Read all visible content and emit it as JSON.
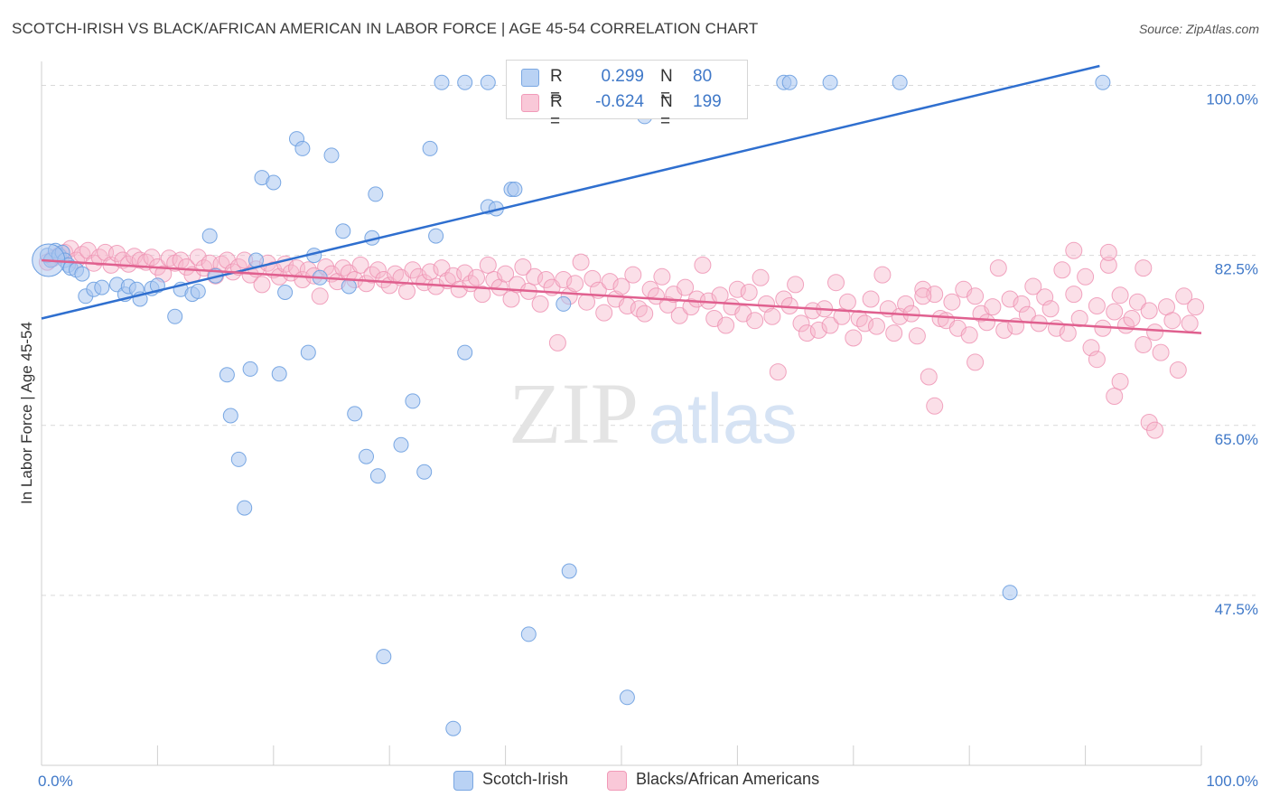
{
  "header": {
    "title": "SCOTCH-IRISH VS BLACK/AFRICAN AMERICAN IN LABOR FORCE | AGE 45-54 CORRELATION CHART",
    "source": "Source: ZipAtlas.com"
  },
  "watermark": {
    "zip": "ZIP",
    "atlas": "atlas"
  },
  "colors": {
    "blue_fill": "#a9c6f0",
    "blue_stroke": "#6b9ee0",
    "blue_line": "#2f6fcf",
    "pink_fill": "#f6b9cc",
    "pink_stroke": "#ee8fb0",
    "pink_line": "#e0608f",
    "tick_label": "#3f78c8",
    "grid": "#d9d9d9"
  },
  "legend": {
    "rows": [
      {
        "r_label": "R =",
        "r_value": "0.299",
        "n_label": "N =",
        "n_value": "80",
        "color": "#a9c6f0"
      },
      {
        "r_label": "R =",
        "r_value": "-0.624",
        "n_label": "N =",
        "n_value": "199",
        "color": "#f6b9cc"
      }
    ]
  },
  "bottom_legend": {
    "items": [
      {
        "label": "Scotch-Irish"
      },
      {
        "label": "Blacks/African Americans"
      }
    ]
  },
  "chart_data": {
    "type": "scatter",
    "title": "SCOTCH-IRISH VS BLACK/AFRICAN AMERICAN IN LABOR FORCE | AGE 45-54 CORRELATION CHART",
    "xlabel": "",
    "ylabel": "In Labor Force | Age 45-54",
    "xlim": [
      0,
      100
    ],
    "ylim": [
      30,
      102
    ],
    "x_tick_labels": [
      "0.0%",
      "100.0%"
    ],
    "y_ticks": [
      47.5,
      65.0,
      82.5,
      100.0
    ],
    "y_tick_labels": [
      "47.5%",
      "65.0%",
      "82.5%",
      "100.0%"
    ],
    "grid": true,
    "legend_position": "top-center",
    "series": [
      {
        "name": "Scotch-Irish",
        "color": "#a9c6f0",
        "r": 0.299,
        "n": 80,
        "trend": {
          "x": [
            0,
            100
          ],
          "y": [
            76.0,
            104.5
          ]
        },
        "points": [
          [
            0.5,
            82.5
          ],
          [
            0.8,
            82.0
          ],
          [
            1.2,
            83.0
          ],
          [
            1.5,
            82.5
          ],
          [
            1.8,
            82.8
          ],
          [
            2.0,
            82.0
          ],
          [
            2.3,
            81.5
          ],
          [
            2.5,
            81.2
          ],
          [
            3.0,
            81.0
          ],
          [
            3.5,
            80.6
          ],
          [
            3.8,
            78.3
          ],
          [
            4.5,
            79.0
          ],
          [
            5.2,
            79.2
          ],
          [
            6.5,
            79.5
          ],
          [
            7.2,
            78.5
          ],
          [
            7.5,
            79.3
          ],
          [
            8.2,
            79.0
          ],
          [
            8.5,
            78.0
          ],
          [
            9.5,
            79.1
          ],
          [
            10.0,
            79.4
          ],
          [
            11.5,
            76.2
          ],
          [
            12.0,
            79.0
          ],
          [
            13.0,
            78.5
          ],
          [
            13.5,
            78.8
          ],
          [
            14.5,
            84.5
          ],
          [
            15.0,
            80.4
          ],
          [
            16.0,
            70.2
          ],
          [
            16.3,
            66.0
          ],
          [
            17.0,
            61.5
          ],
          [
            17.5,
            56.5
          ],
          [
            18.0,
            70.8
          ],
          [
            18.5,
            82.0
          ],
          [
            19.0,
            90.5
          ],
          [
            20.0,
            90.0
          ],
          [
            20.5,
            70.3
          ],
          [
            21.0,
            78.7
          ],
          [
            22.0,
            94.5
          ],
          [
            22.5,
            93.5
          ],
          [
            23.0,
            72.5
          ],
          [
            23.5,
            82.5
          ],
          [
            24.0,
            80.2
          ],
          [
            25.0,
            92.8
          ],
          [
            26.0,
            85.0
          ],
          [
            26.5,
            79.3
          ],
          [
            27.0,
            66.2
          ],
          [
            28.0,
            61.8
          ],
          [
            28.5,
            84.3
          ],
          [
            28.8,
            88.8
          ],
          [
            29.0,
            59.8
          ],
          [
            29.5,
            41.2
          ],
          [
            31.0,
            63.0
          ],
          [
            32.0,
            67.5
          ],
          [
            33.0,
            60.2
          ],
          [
            33.5,
            93.5
          ],
          [
            34.0,
            84.5
          ],
          [
            34.5,
            100.3
          ],
          [
            35.5,
            33.8
          ],
          [
            36.5,
            72.5
          ],
          [
            36.5,
            100.3
          ],
          [
            38.5,
            100.3
          ],
          [
            38.5,
            87.5
          ],
          [
            39.2,
            87.3
          ],
          [
            40.5,
            89.3
          ],
          [
            40.8,
            89.3
          ],
          [
            41.5,
            100.3
          ],
          [
            42.0,
            43.5
          ],
          [
            43.5,
            100.3
          ],
          [
            45.5,
            50.0
          ],
          [
            45.0,
            77.5
          ],
          [
            47.0,
            100.3
          ],
          [
            48.0,
            100.3
          ],
          [
            48.0,
            100.3
          ],
          [
            49.5,
            97.5
          ],
          [
            50.5,
            37.0
          ],
          [
            51.5,
            100.3
          ],
          [
            51.5,
            100.3
          ],
          [
            52.0,
            96.8
          ],
          [
            64.0,
            100.3
          ],
          [
            64.5,
            100.3
          ],
          [
            68.0,
            100.3
          ],
          [
            74.0,
            100.3
          ],
          [
            83.5,
            47.8
          ],
          [
            91.5,
            100.3
          ]
        ]
      },
      {
        "name": "Blacks/African Americans",
        "color": "#f6b9cc",
        "r": -0.624,
        "n": 199,
        "trend": {
          "x": [
            0,
            100
          ],
          "y": [
            82.0,
            74.5
          ]
        },
        "points": [
          [
            0.5,
            81.8
          ],
          [
            1.0,
            82.2
          ],
          [
            1.5,
            82.5
          ],
          [
            2.0,
            82.8
          ],
          [
            2.5,
            83.2
          ],
          [
            3.0,
            82.0
          ],
          [
            3.5,
            82.6
          ],
          [
            4.0,
            83.0
          ],
          [
            4.5,
            81.7
          ],
          [
            5.0,
            82.3
          ],
          [
            5.5,
            82.8
          ],
          [
            6.0,
            81.5
          ],
          [
            6.5,
            82.7
          ],
          [
            7.0,
            82.0
          ],
          [
            7.5,
            81.6
          ],
          [
            8.0,
            82.4
          ],
          [
            8.5,
            82.0
          ],
          [
            9.0,
            81.8
          ],
          [
            9.5,
            82.3
          ],
          [
            10.0,
            81.3
          ],
          [
            10.5,
            80.6
          ],
          [
            11.0,
            82.2
          ],
          [
            11.5,
            81.7
          ],
          [
            12.0,
            82.0
          ],
          [
            12.5,
            81.3
          ],
          [
            13.0,
            80.5
          ],
          [
            13.5,
            82.3
          ],
          [
            14.0,
            81.2
          ],
          [
            14.5,
            81.7
          ],
          [
            15.0,
            80.4
          ],
          [
            15.5,
            81.6
          ],
          [
            16.0,
            82.0
          ],
          [
            16.5,
            80.8
          ],
          [
            17.0,
            81.3
          ],
          [
            17.5,
            82.0
          ],
          [
            18.0,
            80.5
          ],
          [
            18.5,
            81.1
          ],
          [
            19.0,
            79.5
          ],
          [
            19.5,
            81.7
          ],
          [
            20.0,
            81.0
          ],
          [
            20.5,
            80.3
          ],
          [
            21.0,
            81.6
          ],
          [
            21.5,
            80.7
          ],
          [
            22.0,
            81.2
          ],
          [
            22.5,
            80.0
          ],
          [
            23.0,
            81.0
          ],
          [
            23.5,
            80.4
          ],
          [
            24.0,
            78.3
          ],
          [
            24.5,
            81.3
          ],
          [
            25.0,
            80.6
          ],
          [
            25.5,
            79.8
          ],
          [
            26.0,
            81.2
          ],
          [
            26.5,
            80.7
          ],
          [
            27.0,
            80.0
          ],
          [
            27.5,
            81.5
          ],
          [
            28.0,
            79.6
          ],
          [
            28.5,
            80.5
          ],
          [
            29.0,
            81.0
          ],
          [
            29.5,
            80.0
          ],
          [
            30.0,
            79.4
          ],
          [
            30.5,
            80.6
          ],
          [
            31.0,
            80.2
          ],
          [
            31.5,
            78.8
          ],
          [
            32.0,
            81.0
          ],
          [
            32.5,
            80.3
          ],
          [
            33.0,
            79.7
          ],
          [
            33.5,
            80.8
          ],
          [
            34.0,
            79.3
          ],
          [
            34.5,
            81.2
          ],
          [
            35.0,
            79.9
          ],
          [
            35.5,
            80.4
          ],
          [
            36.0,
            79.0
          ],
          [
            36.5,
            80.7
          ],
          [
            37.0,
            79.6
          ],
          [
            37.5,
            80.2
          ],
          [
            38.0,
            78.5
          ],
          [
            38.5,
            81.5
          ],
          [
            39.0,
            80.0
          ],
          [
            39.5,
            79.2
          ],
          [
            40.0,
            80.6
          ],
          [
            40.5,
            78.0
          ],
          [
            41.0,
            79.5
          ],
          [
            41.5,
            81.3
          ],
          [
            42.0,
            78.8
          ],
          [
            42.5,
            80.3
          ],
          [
            43.0,
            77.5
          ],
          [
            43.5,
            80.0
          ],
          [
            44.0,
            79.2
          ],
          [
            44.5,
            73.5
          ],
          [
            45.0,
            80.0
          ],
          [
            45.5,
            78.3
          ],
          [
            46.0,
            79.6
          ],
          [
            46.5,
            81.8
          ],
          [
            47.0,
            77.7
          ],
          [
            47.5,
            80.1
          ],
          [
            48.0,
            78.9
          ],
          [
            48.5,
            76.6
          ],
          [
            49.0,
            79.8
          ],
          [
            49.5,
            78.0
          ],
          [
            50.0,
            79.3
          ],
          [
            50.5,
            77.3
          ],
          [
            51.0,
            80.5
          ],
          [
            51.5,
            77.0
          ],
          [
            52.0,
            76.5
          ],
          [
            52.5,
            79.0
          ],
          [
            53.0,
            78.3
          ],
          [
            53.5,
            80.3
          ],
          [
            54.0,
            77.4
          ],
          [
            54.5,
            78.5
          ],
          [
            55.0,
            76.3
          ],
          [
            55.5,
            79.2
          ],
          [
            56.0,
            77.2
          ],
          [
            56.5,
            78.0
          ],
          [
            57.0,
            81.5
          ],
          [
            57.5,
            77.8
          ],
          [
            58.0,
            76.0
          ],
          [
            58.5,
            78.4
          ],
          [
            59.0,
            75.3
          ],
          [
            59.5,
            77.2
          ],
          [
            60.0,
            79.0
          ],
          [
            60.5,
            76.5
          ],
          [
            61.0,
            78.7
          ],
          [
            61.5,
            75.8
          ],
          [
            62.0,
            80.2
          ],
          [
            62.5,
            77.5
          ],
          [
            63.0,
            76.2
          ],
          [
            63.5,
            70.5
          ],
          [
            64.0,
            78.0
          ],
          [
            64.5,
            77.3
          ],
          [
            65.0,
            79.5
          ],
          [
            65.5,
            75.5
          ],
          [
            66.0,
            74.5
          ],
          [
            66.5,
            76.8
          ],
          [
            67.0,
            74.8
          ],
          [
            67.5,
            77.0
          ],
          [
            68.0,
            75.3
          ],
          [
            68.5,
            79.7
          ],
          [
            69.0,
            76.2
          ],
          [
            69.5,
            77.7
          ],
          [
            70.0,
            74.0
          ],
          [
            70.5,
            76.0
          ],
          [
            71.0,
            75.5
          ],
          [
            71.5,
            78.0
          ],
          [
            72.0,
            75.2
          ],
          [
            72.5,
            80.5
          ],
          [
            73.0,
            77.0
          ],
          [
            73.5,
            74.5
          ],
          [
            74.0,
            76.2
          ],
          [
            74.5,
            77.5
          ],
          [
            75.0,
            76.5
          ],
          [
            75.5,
            74.2
          ],
          [
            76.0,
            79.0
          ],
          [
            76.5,
            70.0
          ],
          [
            77.0,
            78.5
          ],
          [
            77.5,
            76.0
          ],
          [
            78.0,
            75.8
          ],
          [
            78.5,
            77.7
          ],
          [
            79.0,
            75.0
          ],
          [
            79.5,
            79.0
          ],
          [
            80.0,
            74.3
          ],
          [
            80.5,
            78.3
          ],
          [
            81.0,
            76.5
          ],
          [
            81.5,
            75.6
          ],
          [
            82.0,
            77.2
          ],
          [
            82.5,
            81.2
          ],
          [
            83.0,
            74.8
          ],
          [
            83.5,
            78.0
          ],
          [
            84.0,
            75.2
          ],
          [
            84.5,
            77.5
          ],
          [
            85.0,
            76.4
          ],
          [
            85.5,
            79.3
          ],
          [
            86.0,
            75.5
          ],
          [
            86.5,
            78.2
          ],
          [
            87.0,
            77.0
          ],
          [
            87.5,
            75.0
          ],
          [
            88.0,
            81.0
          ],
          [
            88.5,
            74.5
          ],
          [
            89.0,
            78.5
          ],
          [
            89.5,
            76.0
          ],
          [
            90.0,
            80.3
          ],
          [
            90.5,
            73.0
          ],
          [
            91.0,
            77.3
          ],
          [
            91.5,
            75.0
          ],
          [
            92.0,
            81.5
          ],
          [
            92.5,
            76.7
          ],
          [
            93.0,
            78.4
          ],
          [
            93.5,
            75.3
          ],
          [
            94.0,
            76.0
          ],
          [
            94.5,
            77.7
          ],
          [
            95.0,
            73.3
          ],
          [
            95.5,
            76.8
          ],
          [
            96.0,
            74.6
          ],
          [
            96.5,
            72.5
          ],
          [
            97.0,
            77.2
          ],
          [
            97.5,
            75.8
          ],
          [
            98.0,
            70.7
          ],
          [
            98.5,
            78.3
          ],
          [
            99.0,
            75.5
          ],
          [
            99.5,
            77.2
          ],
          [
            95.5,
            65.3
          ],
          [
            96.0,
            64.5
          ],
          [
            76.0,
            78.3
          ],
          [
            80.5,
            71.5
          ],
          [
            91.0,
            71.8
          ],
          [
            93.0,
            69.5
          ],
          [
            89.0,
            83.0
          ],
          [
            92.0,
            82.8
          ],
          [
            95.0,
            81.2
          ],
          [
            92.5,
            68.0
          ],
          [
            77.0,
            67.0
          ]
        ]
      }
    ]
  }
}
